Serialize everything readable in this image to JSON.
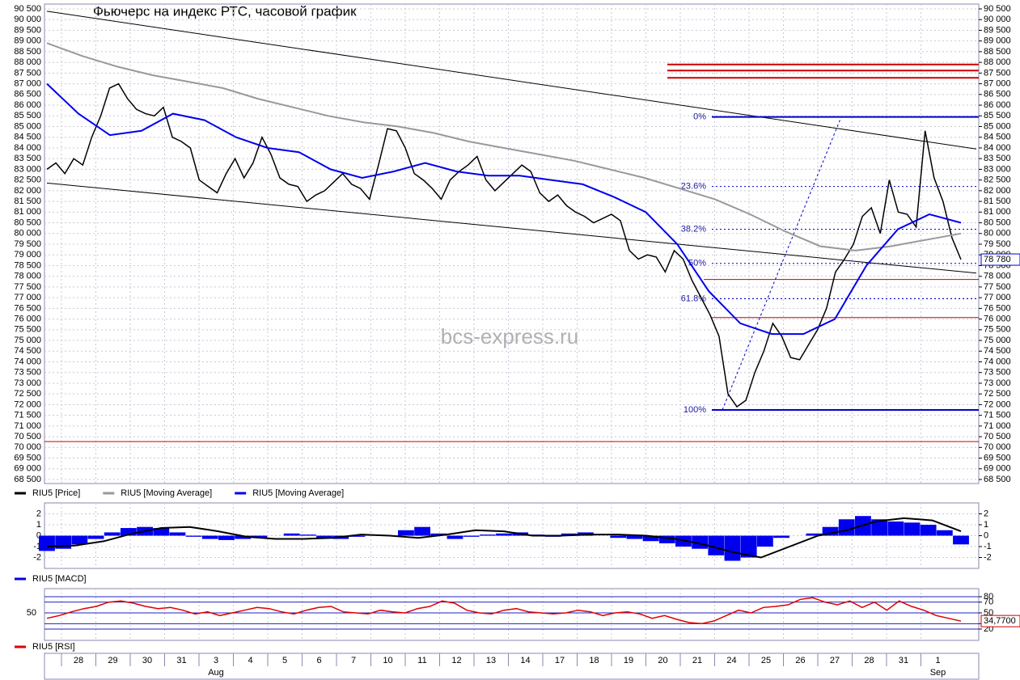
{
  "chart_data": [
    {
      "type": "line",
      "title": "Фьючерс на индекс РТС, часовой график",
      "watermark": "bcs-express.ru",
      "ylim": [
        68311,
        90727
      ],
      "yticks": [
        {
          "value": 90500,
          "label": "90 500"
        },
        {
          "value": 90000,
          "label": "90 000"
        },
        {
          "value": 89500,
          "label": "89 500"
        },
        {
          "value": 89000,
          "label": "89 000"
        },
        {
          "value": 88500,
          "label": "88 500"
        },
        {
          "value": 88000,
          "label": "88 000"
        },
        {
          "value": 87500,
          "label": "87 500"
        },
        {
          "value": 87000,
          "label": "87 000"
        },
        {
          "value": 86500,
          "label": "86 500"
        },
        {
          "value": 86000,
          "label": "86 000"
        },
        {
          "value": 85500,
          "label": "85 500"
        },
        {
          "value": 85000,
          "label": "85 000"
        },
        {
          "value": 84500,
          "label": "84 500"
        },
        {
          "value": 84000,
          "label": "84 000"
        },
        {
          "value": 83500,
          "label": "83 500"
        },
        {
          "value": 83000,
          "label": "83 000"
        },
        {
          "value": 82500,
          "label": "82 500"
        },
        {
          "value": 82000,
          "label": "82 000"
        },
        {
          "value": 81500,
          "label": "81 500"
        },
        {
          "value": 81000,
          "label": "81 000"
        },
        {
          "value": 80500,
          "label": "80 500"
        },
        {
          "value": 80000,
          "label": "80 000"
        },
        {
          "value": 79500,
          "label": "79 500"
        },
        {
          "value": 79000,
          "label": "79 000"
        },
        {
          "value": 78500,
          "label": "78 500"
        },
        {
          "value": 78000,
          "label": "78 000"
        },
        {
          "value": 77500,
          "label": "77 500"
        },
        {
          "value": 77000,
          "label": "77 000"
        },
        {
          "value": 76500,
          "label": "76 500"
        },
        {
          "value": 76000,
          "label": "76 000"
        },
        {
          "value": 75500,
          "label": "75 500"
        },
        {
          "value": 75000,
          "label": "75 000"
        },
        {
          "value": 74500,
          "label": "74 500"
        },
        {
          "value": 74000,
          "label": "74 000"
        },
        {
          "value": 73500,
          "label": "73 500"
        },
        {
          "value": 73000,
          "label": "73 000"
        },
        {
          "value": 72500,
          "label": "72 500"
        },
        {
          "value": 72000,
          "label": "72 000"
        },
        {
          "value": 71500,
          "label": "71 500"
        },
        {
          "value": 71000,
          "label": "71 000"
        },
        {
          "value": 70500,
          "label": "70 500"
        },
        {
          "value": 70000,
          "label": "70 000"
        },
        {
          "value": 69500,
          "label": "69 500"
        },
        {
          "value": 69000,
          "label": "69 000"
        },
        {
          "value": 68500,
          "label": "68 500"
        }
      ],
      "grid": true,
      "series": [
        {
          "name": "RIU5 [Price]",
          "color": "#000000",
          "values": [
            83000,
            83300,
            82800,
            83500,
            83200,
            84500,
            85500,
            86800,
            87000,
            86300,
            85800,
            85600,
            85500,
            85900,
            84500,
            84300,
            84000,
            82500,
            82200,
            81900,
            82800,
            83500,
            82600,
            83300,
            84500,
            83700,
            82600,
            82300,
            82200,
            81500,
            81800,
            82000,
            82400,
            82800,
            82300,
            82100,
            81600,
            83200,
            84900,
            84800,
            84000,
            82800,
            82500,
            82100,
            81600,
            82500,
            82900,
            83200,
            83600,
            82500,
            82000,
            82400,
            82800,
            83200,
            82900,
            81900,
            81500,
            81800,
            81300,
            81000,
            80800,
            80500,
            80700,
            80900,
            80600,
            79200,
            78800,
            79000,
            78900,
            78200,
            79200,
            78800,
            77800,
            77000,
            76200,
            75200,
            72500,
            71900,
            72200,
            73500,
            74500,
            75800,
            75200,
            74200,
            74100,
            74800,
            75500,
            76500,
            78200,
            78800,
            79500,
            80800,
            81200,
            80000,
            82500,
            81000,
            80900,
            80300,
            84800,
            82600,
            81500,
            79800,
            78780
          ]
        },
        {
          "name": "RIU5 [Moving Average]",
          "color": "#999999",
          "values": [
            88900,
            88300,
            87800,
            87400,
            87100,
            86800,
            86300,
            85900,
            85500,
            85200,
            85000,
            84700,
            84300,
            84000,
            83700,
            83400,
            83000,
            82600,
            82100,
            81600,
            80900,
            80100,
            79400,
            79200,
            79400,
            79700,
            80000
          ]
        },
        {
          "name": "RIU5 [Moving Average]",
          "color": "#0000ee",
          "values": [
            87000,
            85600,
            84600,
            84800,
            85600,
            85300,
            84500,
            84000,
            83800,
            83000,
            82600,
            82900,
            83300,
            82900,
            82700,
            82700,
            82500,
            82300,
            81700,
            81000,
            79500,
            77300,
            75800,
            75300,
            75300,
            76000,
            78500,
            80200,
            80900,
            80500
          ]
        }
      ],
      "last_label": "78 780",
      "fib": [
        {
          "label": "0%",
          "value": 85450
        },
        {
          "label": "23.6%",
          "value": 82200
        },
        {
          "label": "38.2%",
          "value": 80200
        },
        {
          "label": "50%",
          "value": 78600
        },
        {
          "label": "61.8%",
          "value": 76950
        },
        {
          "label": "100%",
          "value": 71750
        }
      ],
      "fib_color": "#0000cc",
      "levels": [
        87900,
        87620,
        87280,
        77850,
        76070,
        70270
      ],
      "level_color": "#cc0000",
      "trendlines": [
        {
          "from": 90390,
          "to": 83950
        },
        {
          "from": 82360,
          "to": 78150
        }
      ],
      "trend_color": "#000000"
    },
    {
      "type": "bar",
      "ylim": [
        -3,
        3
      ],
      "yticks": [
        2,
        1,
        0,
        -1,
        -2
      ],
      "series": [
        {
          "name": "RIU5 [MACD]",
          "color": "#0000ee",
          "values": [
            -1.4,
            -1.2,
            -0.8,
            -0.3,
            0.3,
            0.7,
            0.8,
            0.7,
            0.3,
            -0.1,
            -0.3,
            -0.4,
            -0.3,
            -0.2,
            0.0,
            0.2,
            0.1,
            -0.2,
            -0.3,
            -0.1,
            0.1,
            0.0,
            0.5,
            0.8,
            0.2,
            -0.3,
            -0.1,
            0.1,
            0.2,
            0.3,
            0.1,
            -0.1,
            0.2,
            0.3,
            0.0,
            -0.2,
            -0.3,
            -0.5,
            -0.7,
            -1.0,
            -1.2,
            -1.8,
            -2.3,
            -2.0,
            -1.0,
            -0.2,
            0.0,
            0.2,
            0.8,
            1.5,
            1.8,
            1.5,
            1.3,
            1.2,
            1.0,
            0.5,
            -0.8
          ]
        }
      ],
      "signal": {
        "color": "#000000",
        "values": [
          -1.0,
          -0.9,
          -0.5,
          0.2,
          0.7,
          0.8,
          0.4,
          -0.1,
          -0.3,
          -0.3,
          -0.2,
          0.1,
          0.0,
          -0.2,
          0.1,
          0.5,
          0.4,
          0.0,
          0.0,
          0.1,
          0.1,
          0.0,
          -0.3,
          -0.8,
          -1.5,
          -2.0,
          -1.0,
          0.0,
          0.5,
          1.3,
          1.6,
          1.4,
          0.4
        ]
      }
    },
    {
      "type": "line",
      "ylim": [
        -1,
        95
      ],
      "yticks": [
        80,
        70,
        50,
        30,
        20
      ],
      "left_yticks": [
        50
      ],
      "series": [
        {
          "name": "RIU5 [RSI]",
          "color": "#dd0000",
          "values": [
            40,
            45,
            52,
            58,
            62,
            70,
            72,
            68,
            62,
            58,
            60,
            55,
            48,
            52,
            45,
            50,
            55,
            60,
            58,
            52,
            48,
            55,
            60,
            62,
            52,
            50,
            48,
            55,
            52,
            50,
            58,
            62,
            72,
            68,
            55,
            50,
            48,
            55,
            58,
            52,
            50,
            48,
            50,
            55,
            52,
            45,
            50,
            52,
            48,
            40,
            45,
            38,
            32,
            30,
            35,
            45,
            55,
            50,
            60,
            62,
            65,
            75,
            78,
            70,
            65,
            72,
            60,
            70,
            55,
            72,
            62,
            55,
            45,
            40,
            34.77
          ]
        }
      ],
      "last_label": "34,7700"
    }
  ],
  "x_axis": {
    "days": [
      "28",
      "29",
      "30",
      "31",
      "3",
      "4",
      "5",
      "6",
      "7",
      "10",
      "11",
      "12",
      "13",
      "14",
      "17",
      "18",
      "19",
      "20",
      "21",
      "24",
      "25",
      "26",
      "27",
      "28",
      "31",
      "1"
    ],
    "months": [
      null,
      null,
      null,
      null,
      "Aug",
      null,
      null,
      null,
      null,
      null,
      null,
      null,
      null,
      null,
      null,
      null,
      null,
      null,
      null,
      null,
      null,
      null,
      null,
      null,
      null,
      "Sep"
    ]
  }
}
